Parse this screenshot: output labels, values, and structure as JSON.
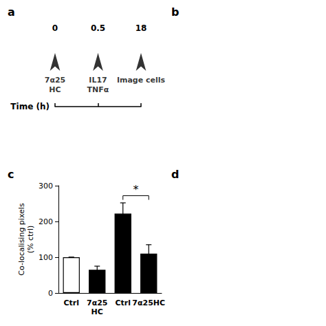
{
  "chart_data": [
    {
      "type": "timeline",
      "title": "a",
      "xlabel": "Time (h)",
      "categories": [
        "0",
        "0.5",
        "18"
      ],
      "annotations": [
        "7α25\nHC",
        "IL17\nTNFα",
        "Image cells"
      ]
    },
    {
      "type": "blank",
      "title": "b"
    },
    {
      "type": "bar",
      "title": "c",
      "ylabel": "Co-localising pixels\n(% ctrl)",
      "categories": [
        "Ctrl",
        "7α25\nHC",
        "Ctrl",
        "7α25HC"
      ],
      "values": [
        100,
        65,
        222,
        110
      ],
      "errors": [
        0,
        10,
        30,
        25
      ],
      "colors": [
        "white",
        "black",
        "black",
        "black"
      ],
      "ylim": [
        0,
        300
      ],
      "yticks": [
        0,
        100,
        200,
        300
      ],
      "grid": false,
      "annotations": [
        {
          "text": "*",
          "x1": 2,
          "x2": 3,
          "y": 272
        }
      ]
    },
    {
      "type": "blank",
      "title": "d"
    }
  ]
}
